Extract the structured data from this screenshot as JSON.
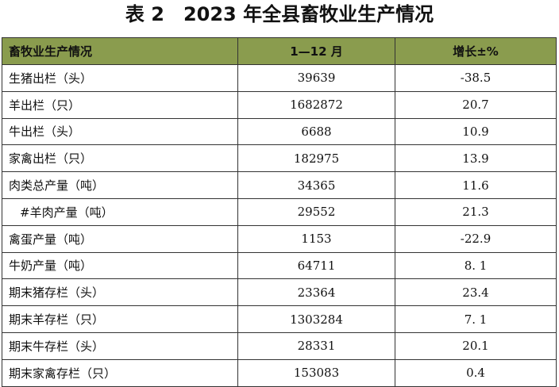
{
  "title": "表 2　2023 年全县畜牧业生产情况",
  "table": {
    "header": [
      "畜牧业生产情况",
      "1—12 月",
      "增长±%"
    ],
    "rows": [
      [
        "生猪出栏（头）",
        "39639",
        "-38.5"
      ],
      [
        "羊出栏（只）",
        "1682872",
        "20.7"
      ],
      [
        "牛出栏（头）",
        "6688",
        "10.9"
      ],
      [
        "家禽出栏（只）",
        "182975",
        "13.9"
      ],
      [
        "肉类总产量（吨）",
        "34365",
        "11.6"
      ],
      [
        "#羊肉产量（吨）",
        "29552",
        "21.3"
      ],
      [
        "禽蛋产量（吨）",
        "1153",
        "-22.9"
      ],
      [
        "牛奶产量（吨）",
        "64711",
        "8. 1"
      ],
      [
        "期末猪存栏（头）",
        "23364",
        "23.4"
      ],
      [
        "期末羊存栏（只）",
        "1303284",
        "7. 1"
      ],
      [
        "期末牛存栏（头）",
        "28331",
        "20.1"
      ],
      [
        "期末家禽存栏（只）",
        "153083",
        "0.4"
      ]
    ]
  }
}
